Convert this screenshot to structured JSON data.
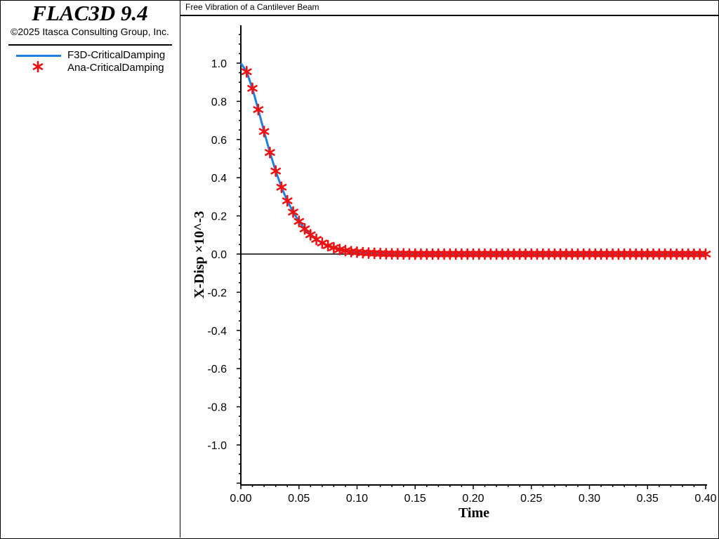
{
  "app": {
    "product": "FLAC3D 9.4",
    "copyright": "©2025 Itasca Consulting Group, Inc."
  },
  "legend": [
    {
      "label": "F3D-CriticalDamping",
      "type": "line",
      "color": "#1e7fdc"
    },
    {
      "label": "Ana-CriticalDamping",
      "type": "star",
      "color": "#ee1111"
    }
  ],
  "chart_data": {
    "type": "line",
    "title": "Free Vibration of a Cantilever Beam",
    "xlabel": "Time",
    "ylabel": "X-Disp ×10^-3",
    "xlim": [
      0.0,
      0.4
    ],
    "ylim": [
      -1.2,
      1.2
    ],
    "x_ticks": [
      "0.00",
      "0.05",
      "0.10",
      "0.15",
      "0.20",
      "0.25",
      "0.30",
      "0.35",
      "0.40"
    ],
    "y_ticks": [
      "1.0",
      "0.8",
      "0.6",
      "0.4",
      "0.2",
      "0.0",
      "-0.2",
      "-0.4",
      "-0.6",
      "-0.8",
      "-1.0"
    ],
    "zero_line": true,
    "series": [
      {
        "name": "F3D-CriticalDamping",
        "style": "line",
        "color": "#1e7fdc",
        "x": [
          0.0,
          0.005,
          0.01,
          0.015,
          0.02,
          0.025,
          0.03,
          0.035,
          0.04,
          0.045,
          0.05,
          0.055,
          0.06,
          0.065,
          0.07,
          0.075,
          0.08,
          0.085,
          0.09,
          0.095,
          0.1,
          0.11,
          0.12,
          0.13,
          0.15,
          0.2,
          0.25,
          0.3,
          0.35,
          0.4
        ],
        "y": [
          1.0,
          0.955,
          0.868,
          0.757,
          0.642,
          0.532,
          0.435,
          0.35,
          0.279,
          0.22,
          0.171,
          0.132,
          0.101,
          0.077,
          0.058,
          0.044,
          0.033,
          0.024,
          0.018,
          0.013,
          0.01,
          0.005,
          0.003,
          0.001,
          0.0,
          0.0,
          0.0,
          0.0,
          0.0,
          0.0
        ]
      },
      {
        "name": "Ana-CriticalDamping",
        "style": "star",
        "color": "#ee1111",
        "x": [
          0.005,
          0.01,
          0.015,
          0.02,
          0.025,
          0.03,
          0.035,
          0.04,
          0.045,
          0.05,
          0.055,
          0.06,
          0.065,
          0.07,
          0.075,
          0.08,
          0.085,
          0.09,
          0.095,
          0.1,
          0.105,
          0.11,
          0.115,
          0.12,
          0.125,
          0.13,
          0.135,
          0.14,
          0.145,
          0.15,
          0.155,
          0.16,
          0.165,
          0.17,
          0.175,
          0.18,
          0.185,
          0.19,
          0.195,
          0.2,
          0.205,
          0.21,
          0.215,
          0.22,
          0.225,
          0.23,
          0.235,
          0.24,
          0.245,
          0.25,
          0.255,
          0.26,
          0.265,
          0.27,
          0.275,
          0.28,
          0.285,
          0.29,
          0.295,
          0.3,
          0.305,
          0.31,
          0.315,
          0.32,
          0.325,
          0.33,
          0.335,
          0.34,
          0.345,
          0.35,
          0.355,
          0.36,
          0.365,
          0.37,
          0.375,
          0.38,
          0.385,
          0.39,
          0.395,
          0.4
        ],
        "y": [
          0.955,
          0.868,
          0.757,
          0.642,
          0.532,
          0.435,
          0.35,
          0.279,
          0.22,
          0.171,
          0.132,
          0.101,
          0.077,
          0.058,
          0.044,
          0.033,
          0.024,
          0.018,
          0.013,
          0.01,
          0.007,
          0.005,
          0.004,
          0.003,
          0.002,
          0.001,
          0.001,
          0.001,
          0.0,
          0.0,
          0.0,
          0.0,
          0.0,
          0.0,
          0.0,
          0.0,
          0.0,
          0.0,
          0.0,
          0.0,
          0.0,
          0.0,
          0.0,
          0.0,
          0.0,
          0.0,
          0.0,
          0.0,
          0.0,
          0.0,
          0.0,
          0.0,
          0.0,
          0.0,
          0.0,
          0.0,
          0.0,
          0.0,
          0.0,
          0.0,
          0.0,
          0.0,
          0.0,
          0.0,
          0.0,
          0.0,
          0.0,
          0.0,
          0.0,
          0.0,
          0.0,
          0.0,
          0.0,
          0.0,
          0.0,
          0.0,
          0.0,
          0.0,
          0.0,
          0.0
        ]
      }
    ]
  }
}
